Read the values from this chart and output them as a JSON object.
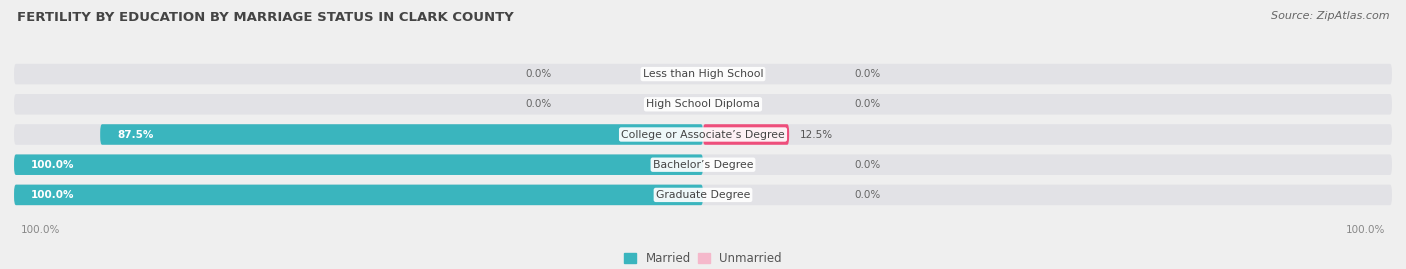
{
  "title": "FERTILITY BY EDUCATION BY MARRIAGE STATUS IN CLARK COUNTY",
  "source": "Source: ZipAtlas.com",
  "categories": [
    "Less than High School",
    "High School Diploma",
    "College or Associate’s Degree",
    "Bachelor’s Degree",
    "Graduate Degree"
  ],
  "married_pct": [
    0.0,
    0.0,
    87.5,
    100.0,
    100.0
  ],
  "unmarried_pct": [
    0.0,
    0.0,
    12.5,
    0.0,
    0.0
  ],
  "married_color": "#3AB5BE",
  "unmarried_color_low": "#F5B8CB",
  "unmarried_color_high": "#EE4E7B",
  "bg_color": "#EFEFEF",
  "bar_bg_color": "#E2E2E6",
  "title_fontsize": 9.5,
  "label_fontsize": 7.8,
  "pct_fontsize": 7.5,
  "legend_fontsize": 8.5,
  "source_fontsize": 8.0
}
